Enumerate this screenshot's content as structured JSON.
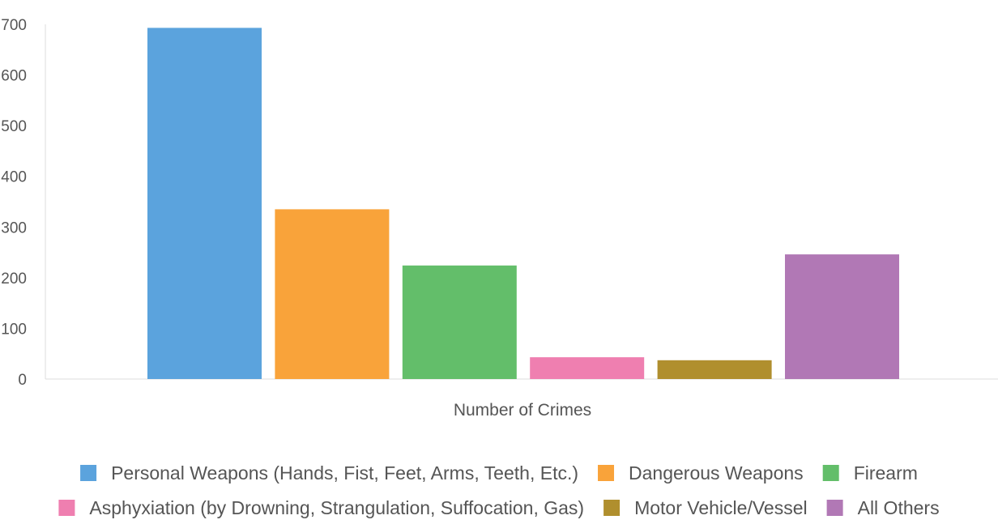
{
  "chart_data": {
    "type": "bar",
    "xlabel": "Number of Crimes",
    "ylabel": "",
    "ylim": [
      0,
      700
    ],
    "yticks": [
      0,
      100,
      200,
      300,
      400,
      500,
      600,
      700
    ],
    "ytick_labels": [
      "0",
      "100",
      "200",
      "300",
      "400",
      "500",
      "600",
      "700"
    ],
    "grid": false,
    "legend_position": "bottom",
    "categories": [
      "Number of Crimes"
    ],
    "series": [
      {
        "name": "Personal Weapons (Hands, Fist, Feet, Arms, Teeth, Etc.)",
        "values": [
          693
        ],
        "color": "#5BA3DD"
      },
      {
        "name": "Dangerous Weapons",
        "values": [
          335
        ],
        "color": "#F9A33A"
      },
      {
        "name": "Firearm",
        "values": [
          224
        ],
        "color": "#63BE6A"
      },
      {
        "name": "Asphyxiation (by Drowning, Strangulation, Suffocation, Gas)",
        "values": [
          43
        ],
        "color": "#EF7FB0"
      },
      {
        "name": "Motor Vehicle/Vessel",
        "values": [
          37
        ],
        "color": "#B08F2E"
      },
      {
        "name": "All Others",
        "values": [
          246
        ],
        "color": "#B178B5"
      }
    ]
  }
}
